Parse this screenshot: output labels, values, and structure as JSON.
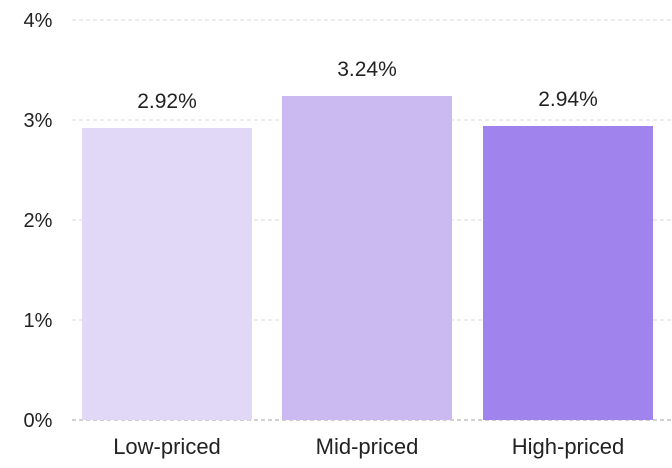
{
  "chart_data": {
    "type": "bar",
    "title": "",
    "xlabel": "",
    "ylabel": "",
    "categories": [
      "Low-priced",
      "Mid-priced",
      "High-priced"
    ],
    "values": [
      2.92,
      3.24,
      2.94
    ],
    "value_labels": [
      "2.92%",
      "3.24%",
      "2.94%"
    ],
    "ylim": [
      0,
      4
    ],
    "yticks": [
      0,
      1,
      2,
      3,
      4
    ],
    "ytick_labels": [
      "0%",
      "1%",
      "2%",
      "3%",
      "4%"
    ],
    "bar_colors": [
      "#e1d8f8",
      "#cbb9f2",
      "#a083ec"
    ],
    "grid": true,
    "legend": "none"
  }
}
